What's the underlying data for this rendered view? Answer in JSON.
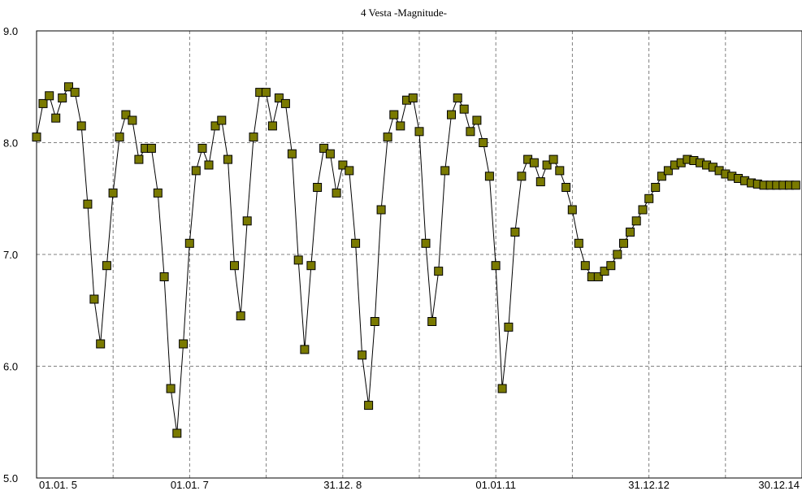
{
  "chart_data": {
    "type": "line",
    "title": "4 Vesta -Magnitude-",
    "xlabel": "",
    "ylabel": "",
    "x_tick_labels": [
      "01.01. 5",
      "01.01. 7",
      "31.12. 8",
      "01.01.11",
      "31.12.12",
      "30.12.14"
    ],
    "y_tick_labels": [
      "9.0",
      "8.0",
      "7.0",
      "6.0",
      "5.0"
    ],
    "y_ticks": [
      9.0,
      8.0,
      7.0,
      6.0,
      5.0
    ],
    "ylim": [
      5.0,
      9.0
    ],
    "xlim": [
      "2005-01-01",
      "2015-01-01"
    ],
    "grid": true,
    "legend": "none",
    "series": [
      {
        "marker": "square",
        "x": [
          "2005-01-01",
          "2005-02-01",
          "2005-03-03",
          "2005-04-03",
          "2005-05-04",
          "2005-06-03",
          "2005-07-03",
          "2005-08-03",
          "2005-09-02",
          "2005-10-03",
          "2005-11-02",
          "2005-12-02",
          "2006-01-01",
          "2006-02-01",
          "2006-03-03",
          "2006-04-03",
          "2006-05-04",
          "2006-06-03",
          "2006-07-03",
          "2006-08-03",
          "2006-09-02",
          "2006-10-03",
          "2006-11-02",
          "2006-12-02",
          "2007-01-01",
          "2007-02-01",
          "2007-03-03",
          "2007-04-03",
          "2007-05-04",
          "2007-06-03",
          "2007-07-03",
          "2007-08-03",
          "2007-09-02",
          "2007-10-03",
          "2007-11-02",
          "2007-12-02",
          "2008-01-01",
          "2008-02-01",
          "2008-03-03",
          "2008-04-03",
          "2008-05-04",
          "2008-06-03",
          "2008-07-03",
          "2008-08-03",
          "2008-09-02",
          "2008-10-03",
          "2008-11-02",
          "2008-12-02",
          "2009-01-01",
          "2009-02-01",
          "2009-03-03",
          "2009-04-03",
          "2009-05-04",
          "2009-06-03",
          "2009-07-03",
          "2009-08-03",
          "2009-09-02",
          "2009-10-03",
          "2009-11-02",
          "2009-12-02",
          "2010-01-01",
          "2010-02-01",
          "2010-03-03",
          "2010-04-03",
          "2010-05-04",
          "2010-06-03",
          "2010-07-03",
          "2010-08-03",
          "2010-09-02",
          "2010-10-03",
          "2010-11-02",
          "2010-12-02",
          "2011-01-01",
          "2011-02-01",
          "2011-03-03",
          "2011-04-03",
          "2011-05-04",
          "2011-06-03",
          "2011-07-03",
          "2011-08-03",
          "2011-09-02",
          "2011-10-03",
          "2011-11-02",
          "2011-12-02",
          "2012-01-01",
          "2012-02-01",
          "2012-03-03",
          "2012-04-03",
          "2012-05-04",
          "2012-06-03",
          "2012-07-03",
          "2012-08-03",
          "2012-09-02",
          "2012-10-03",
          "2012-11-02",
          "2012-12-02",
          "2013-01-01",
          "2013-02-01",
          "2013-03-03",
          "2013-04-03",
          "2013-05-04",
          "2013-06-03",
          "2013-07-03",
          "2013-08-03",
          "2013-09-02",
          "2013-10-03",
          "2013-11-02",
          "2013-12-02",
          "2014-01-01",
          "2014-02-01",
          "2014-03-03",
          "2014-04-03",
          "2014-05-04",
          "2014-06-03",
          "2014-07-03",
          "2014-08-03",
          "2014-09-02",
          "2014-10-03",
          "2014-11-02",
          "2014-12-02"
        ],
        "y": [
          8.05,
          8.35,
          8.42,
          8.22,
          8.4,
          8.5,
          8.45,
          8.15,
          7.45,
          6.6,
          6.2,
          6.9,
          7.55,
          8.05,
          8.25,
          8.2,
          7.85,
          7.95,
          7.95,
          7.55,
          6.8,
          5.8,
          5.4,
          6.2,
          7.1,
          7.75,
          7.95,
          7.8,
          8.15,
          8.2,
          7.85,
          6.9,
          6.45,
          7.3,
          8.05,
          8.45,
          8.45,
          8.15,
          8.4,
          8.35,
          7.9,
          6.95,
          6.15,
          6.9,
          7.6,
          7.95,
          7.9,
          7.55,
          7.8,
          7.75,
          7.1,
          6.1,
          5.65,
          6.4,
          7.4,
          8.05,
          8.25,
          8.15,
          8.38,
          8.4,
          8.1,
          7.1,
          6.4,
          6.85,
          7.75,
          8.25,
          8.4,
          8.3,
          8.1,
          8.2,
          8.0,
          7.7,
          6.9,
          5.8,
          6.35,
          7.2,
          7.7,
          7.85,
          7.82,
          7.65,
          7.8,
          7.85,
          7.75,
          7.6,
          7.4,
          7.1,
          6.9,
          6.8,
          6.8,
          6.85,
          6.9,
          7.0,
          7.1,
          7.2,
          7.3,
          7.4,
          7.5,
          7.6,
          7.7,
          7.75,
          7.8,
          7.82,
          7.85,
          7.84,
          7.82,
          7.8,
          7.78,
          7.75,
          7.72,
          7.7,
          7.68,
          7.66,
          7.64,
          7.63,
          7.62,
          7.62,
          7.62,
          7.62,
          7.62,
          7.62
        ]
      }
    ]
  }
}
